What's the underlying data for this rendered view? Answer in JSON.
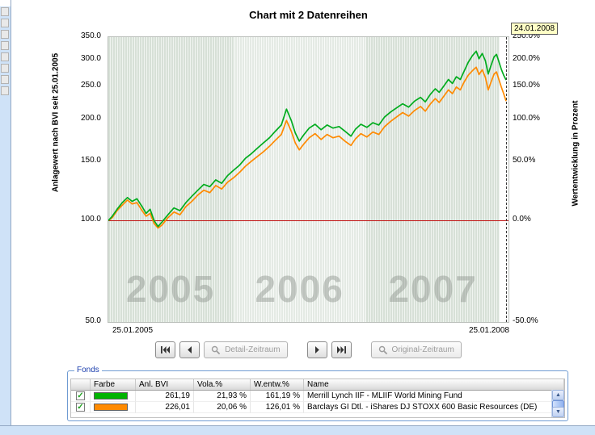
{
  "window": {
    "title": "Chart mit 2 Datenreihen",
    "cursor_date": "24.01.2008"
  },
  "chart_data": {
    "type": "line",
    "title": "Chart mit 2 Datenreihen",
    "x_start_label": "25.01.2005",
    "x_end_label": "25.01.2008",
    "baseline_value": 100,
    "grid": "vertical-stripes",
    "y_left": {
      "label": "Anlagewert nach BVI seit 25.01.2005",
      "scale": "log",
      "min": 50,
      "max": 350,
      "ticks": [
        350,
        300,
        250,
        200,
        150,
        100,
        50
      ]
    },
    "y_right": {
      "label": "Wertentwicklung in Prozent",
      "ticks": [
        "250.0%",
        "200.0%",
        "150.0%",
        "100.0%",
        "50.0%",
        "0.0%",
        "-50.0%"
      ]
    },
    "year_bands": [
      {
        "label": "2005",
        "t0": 0.0,
        "t1": 0.3114
      },
      {
        "label": "2006",
        "t0": 0.3114,
        "t1": 0.6447
      },
      {
        "label": "2007",
        "t0": 0.6447,
        "t1": 0.9781
      },
      {
        "label": "",
        "t0": 0.9781,
        "t1": 1.0
      }
    ],
    "series": [
      {
        "name": "Merrill Lynch IIF - MLIIF World Mining Fund",
        "color": "#00ac1e",
        "points": [
          [
            0.0,
            100
          ],
          [
            0.01,
            103
          ],
          [
            0.022,
            108
          ],
          [
            0.035,
            113
          ],
          [
            0.048,
            117
          ],
          [
            0.06,
            114
          ],
          [
            0.072,
            116
          ],
          [
            0.085,
            110
          ],
          [
            0.095,
            105
          ],
          [
            0.105,
            108
          ],
          [
            0.115,
            100
          ],
          [
            0.125,
            96
          ],
          [
            0.135,
            99
          ],
          [
            0.15,
            104
          ],
          [
            0.165,
            109
          ],
          [
            0.18,
            107
          ],
          [
            0.195,
            113
          ],
          [
            0.21,
            118
          ],
          [
            0.225,
            123
          ],
          [
            0.24,
            128
          ],
          [
            0.255,
            126
          ],
          [
            0.27,
            132
          ],
          [
            0.285,
            129
          ],
          [
            0.3,
            136
          ],
          [
            0.315,
            141
          ],
          [
            0.33,
            146
          ],
          [
            0.345,
            153
          ],
          [
            0.36,
            158
          ],
          [
            0.375,
            164
          ],
          [
            0.39,
            170
          ],
          [
            0.405,
            176
          ],
          [
            0.42,
            184
          ],
          [
            0.435,
            192
          ],
          [
            0.448,
            214
          ],
          [
            0.46,
            198
          ],
          [
            0.47,
            182
          ],
          [
            0.48,
            172
          ],
          [
            0.492,
            180
          ],
          [
            0.505,
            188
          ],
          [
            0.52,
            193
          ],
          [
            0.535,
            186
          ],
          [
            0.55,
            192
          ],
          [
            0.565,
            188
          ],
          [
            0.58,
            190
          ],
          [
            0.595,
            184
          ],
          [
            0.61,
            178
          ],
          [
            0.622,
            187
          ],
          [
            0.635,
            193
          ],
          [
            0.65,
            189
          ],
          [
            0.665,
            195
          ],
          [
            0.68,
            192
          ],
          [
            0.695,
            203
          ],
          [
            0.71,
            210
          ],
          [
            0.725,
            216
          ],
          [
            0.74,
            222
          ],
          [
            0.755,
            217
          ],
          [
            0.77,
            226
          ],
          [
            0.785,
            232
          ],
          [
            0.797,
            225
          ],
          [
            0.81,
            237
          ],
          [
            0.822,
            246
          ],
          [
            0.832,
            240
          ],
          [
            0.845,
            252
          ],
          [
            0.855,
            262
          ],
          [
            0.865,
            255
          ],
          [
            0.875,
            267
          ],
          [
            0.885,
            262
          ],
          [
            0.895,
            278
          ],
          [
            0.905,
            295
          ],
          [
            0.915,
            308
          ],
          [
            0.925,
            318
          ],
          [
            0.932,
            302
          ],
          [
            0.94,
            313
          ],
          [
            0.948,
            298
          ],
          [
            0.955,
            272
          ],
          [
            0.962,
            288
          ],
          [
            0.97,
            306
          ],
          [
            0.976,
            311
          ],
          [
            0.982,
            296
          ],
          [
            0.988,
            281
          ],
          [
            0.994,
            270
          ],
          [
            1.0,
            261.19
          ]
        ]
      },
      {
        "name": "Barclays GI Dtl. - iShares DJ STOXX 600 Basic Resources (DE)",
        "color": "#ff8a00",
        "points": [
          [
            0.0,
            100
          ],
          [
            0.01,
            102
          ],
          [
            0.022,
            107
          ],
          [
            0.035,
            111
          ],
          [
            0.048,
            115
          ],
          [
            0.06,
            112
          ],
          [
            0.072,
            113
          ],
          [
            0.085,
            107
          ],
          [
            0.095,
            103
          ],
          [
            0.105,
            105
          ],
          [
            0.115,
            98
          ],
          [
            0.125,
            95
          ],
          [
            0.135,
            97
          ],
          [
            0.15,
            102
          ],
          [
            0.165,
            106
          ],
          [
            0.18,
            104
          ],
          [
            0.195,
            110
          ],
          [
            0.21,
            114
          ],
          [
            0.225,
            119
          ],
          [
            0.24,
            123
          ],
          [
            0.255,
            121
          ],
          [
            0.27,
            127
          ],
          [
            0.285,
            124
          ],
          [
            0.3,
            130
          ],
          [
            0.315,
            134
          ],
          [
            0.33,
            139
          ],
          [
            0.345,
            145
          ],
          [
            0.36,
            150
          ],
          [
            0.375,
            155
          ],
          [
            0.39,
            160
          ],
          [
            0.405,
            166
          ],
          [
            0.42,
            173
          ],
          [
            0.435,
            180
          ],
          [
            0.448,
            198
          ],
          [
            0.46,
            184
          ],
          [
            0.47,
            170
          ],
          [
            0.48,
            162
          ],
          [
            0.492,
            169
          ],
          [
            0.505,
            176
          ],
          [
            0.52,
            181
          ],
          [
            0.535,
            174
          ],
          [
            0.55,
            180
          ],
          [
            0.565,
            176
          ],
          [
            0.58,
            178
          ],
          [
            0.595,
            172
          ],
          [
            0.61,
            167
          ],
          [
            0.622,
            175
          ],
          [
            0.635,
            181
          ],
          [
            0.65,
            177
          ],
          [
            0.665,
            183
          ],
          [
            0.68,
            180
          ],
          [
            0.695,
            190
          ],
          [
            0.71,
            197
          ],
          [
            0.725,
            203
          ],
          [
            0.74,
            209
          ],
          [
            0.755,
            204
          ],
          [
            0.77,
            212
          ],
          [
            0.785,
            218
          ],
          [
            0.797,
            211
          ],
          [
            0.81,
            222
          ],
          [
            0.822,
            230
          ],
          [
            0.832,
            224
          ],
          [
            0.845,
            235
          ],
          [
            0.855,
            244
          ],
          [
            0.865,
            238
          ],
          [
            0.875,
            249
          ],
          [
            0.885,
            244
          ],
          [
            0.895,
            258
          ],
          [
            0.905,
            270
          ],
          [
            0.915,
            278
          ],
          [
            0.925,
            285
          ],
          [
            0.932,
            271
          ],
          [
            0.94,
            280
          ],
          [
            0.948,
            266
          ],
          [
            0.955,
            244
          ],
          [
            0.962,
            257
          ],
          [
            0.97,
            272
          ],
          [
            0.976,
            276
          ],
          [
            0.982,
            262
          ],
          [
            0.988,
            249
          ],
          [
            0.994,
            238
          ],
          [
            1.0,
            226.01
          ]
        ]
      }
    ]
  },
  "toolbar": {
    "detail_label": "Detail-Zeitraum",
    "original_label": "Original-Zeitraum"
  },
  "fonds": {
    "group_label": "Fonds",
    "columns": [
      "Farbe",
      "Anl. BVI",
      "Vola.%",
      "W.entw.%",
      "Name"
    ],
    "rows": [
      {
        "checked": true,
        "color": "#00b400",
        "anl_bvi": "261,19",
        "vola": "21,93 %",
        "wentw": "161,19 %",
        "name": "Merrill Lynch IIF - MLIIF World Mining Fund"
      },
      {
        "checked": true,
        "color": "#ff8a00",
        "anl_bvi": "226,01",
        "vola": "20,06 %",
        "wentw": "126,01 %",
        "name": "Barclays GI Dtl. - iShares DJ STOXX 600 Basic Resources (DE)"
      }
    ]
  }
}
